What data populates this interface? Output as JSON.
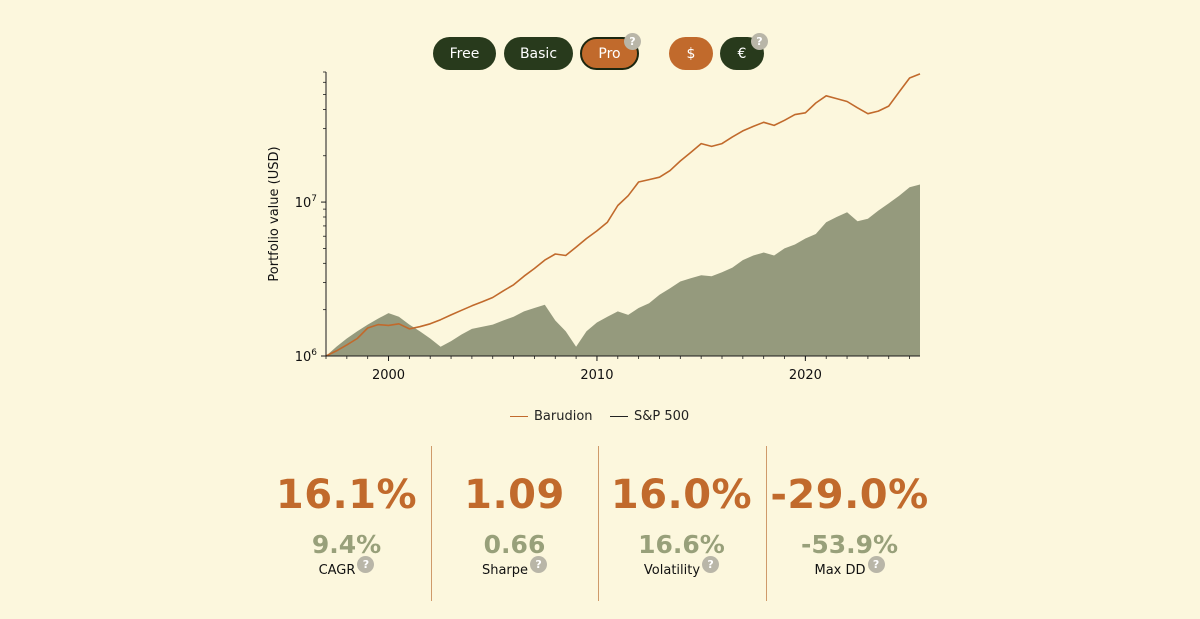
{
  "toggles": {
    "tiers": [
      {
        "label": "Free",
        "state": "default"
      },
      {
        "label": "Basic",
        "state": "default"
      },
      {
        "label": "Pro",
        "state": "selected"
      }
    ],
    "currencies": [
      {
        "label": "$",
        "state": "selected"
      },
      {
        "label": "€",
        "state": "default"
      }
    ],
    "help_glyph": "?"
  },
  "colors": {
    "background": "#fcf7dd",
    "accent": "#c16a2c",
    "dark": "#283a1c",
    "benchmark_fill": "#959a7d",
    "muted_text": "#98a07a"
  },
  "chart_data": {
    "type": "line",
    "y_scale": "log",
    "ylabel": "Portfolio value (USD)",
    "xlabel": "",
    "xlim": [
      1997,
      2025.5
    ],
    "ylim": [
      1000000,
      70000000
    ],
    "x_ticks": [
      "2000",
      "2010",
      "2020"
    ],
    "y_ticks": [
      {
        "base": "10",
        "exp": "6",
        "value": 1000000
      },
      {
        "base": "10",
        "exp": "7",
        "value": 10000000
      }
    ],
    "legend_position": "bottom-center",
    "grid": false,
    "series": [
      {
        "name": "Barudion",
        "style": "line",
        "color": "#c16a2c",
        "x": [
          1997.0,
          1997.5,
          1998.0,
          1998.5,
          1999.0,
          1999.5,
          2000.0,
          2000.5,
          2001.0,
          2001.5,
          2002.0,
          2002.5,
          2003.0,
          2003.5,
          2004.0,
          2004.5,
          2005.0,
          2005.5,
          2006.0,
          2006.5,
          2007.0,
          2007.5,
          2008.0,
          2008.5,
          2009.0,
          2009.5,
          2010.0,
          2010.5,
          2011.0,
          2011.5,
          2012.0,
          2012.5,
          2013.0,
          2013.5,
          2014.0,
          2014.5,
          2015.0,
          2015.5,
          2016.0,
          2016.5,
          2017.0,
          2017.5,
          2018.0,
          2018.5,
          2019.0,
          2019.5,
          2020.0,
          2020.5,
          2021.0,
          2021.5,
          2022.0,
          2022.5,
          2023.0,
          2023.5,
          2024.0,
          2024.5,
          2025.0,
          2025.5
        ],
        "y": [
          1000000,
          1080000,
          1180000,
          1300000,
          1520000,
          1600000,
          1580000,
          1620000,
          1500000,
          1550000,
          1620000,
          1720000,
          1850000,
          1980000,
          2120000,
          2250000,
          2400000,
          2650000,
          2900000,
          3300000,
          3700000,
          4200000,
          4600000,
          4500000,
          5100000,
          5800000,
          6500000,
          7400000,
          9500000,
          11000000,
          13500000,
          14000000,
          14500000,
          16000000,
          18500000,
          21000000,
          24000000,
          23000000,
          24000000,
          26500000,
          29000000,
          31000000,
          33000000,
          31500000,
          34000000,
          37000000,
          38000000,
          44000000,
          49000000,
          47000000,
          45000000,
          41000000,
          37500000,
          39000000,
          42000000,
          52000000,
          64000000,
          68000000
        ]
      },
      {
        "name": "S&P 500",
        "style": "area",
        "color": "#959a7d",
        "x": [
          1997.0,
          1997.5,
          1998.0,
          1998.5,
          1999.0,
          1999.5,
          2000.0,
          2000.5,
          2001.0,
          2001.5,
          2002.0,
          2002.5,
          2003.0,
          2003.5,
          2004.0,
          2004.5,
          2005.0,
          2005.5,
          2006.0,
          2006.5,
          2007.0,
          2007.5,
          2008.0,
          2008.5,
          2009.0,
          2009.5,
          2010.0,
          2010.5,
          2011.0,
          2011.5,
          2012.0,
          2012.5,
          2013.0,
          2013.5,
          2014.0,
          2014.5,
          2015.0,
          2015.5,
          2016.0,
          2016.5,
          2017.0,
          2017.5,
          2018.0,
          2018.5,
          2019.0,
          2019.5,
          2020.0,
          2020.5,
          2021.0,
          2021.5,
          2022.0,
          2022.5,
          2023.0,
          2023.5,
          2024.0,
          2024.5,
          2025.0,
          2025.5
        ],
        "y": [
          1000000,
          1150000,
          1300000,
          1450000,
          1600000,
          1750000,
          1900000,
          1800000,
          1600000,
          1450000,
          1300000,
          1150000,
          1250000,
          1380000,
          1500000,
          1550000,
          1600000,
          1700000,
          1800000,
          1950000,
          2050000,
          2150000,
          1700000,
          1450000,
          1150000,
          1450000,
          1650000,
          1800000,
          1950000,
          1850000,
          2050000,
          2200000,
          2500000,
          2750000,
          3050000,
          3200000,
          3350000,
          3300000,
          3500000,
          3750000,
          4200000,
          4500000,
          4700000,
          4500000,
          5000000,
          5300000,
          5800000,
          6200000,
          7400000,
          8000000,
          8600000,
          7500000,
          7800000,
          8800000,
          9800000,
          11000000,
          12500000,
          13000000
        ]
      }
    ]
  },
  "legend": {
    "items": [
      {
        "label": "Barudion",
        "color": "#c16a2c"
      },
      {
        "label": "S&P 500",
        "color": "#222222"
      }
    ]
  },
  "stats": [
    {
      "value": "16.1%",
      "benchmark": "9.4%",
      "label": "CAGR"
    },
    {
      "value": "1.09",
      "benchmark": "0.66",
      "label": "Sharpe"
    },
    {
      "value": "16.0%",
      "benchmark": "16.6%",
      "label": "Volatility"
    },
    {
      "value": "-29.0%",
      "benchmark": "-53.9%",
      "label": "Max DD"
    }
  ]
}
